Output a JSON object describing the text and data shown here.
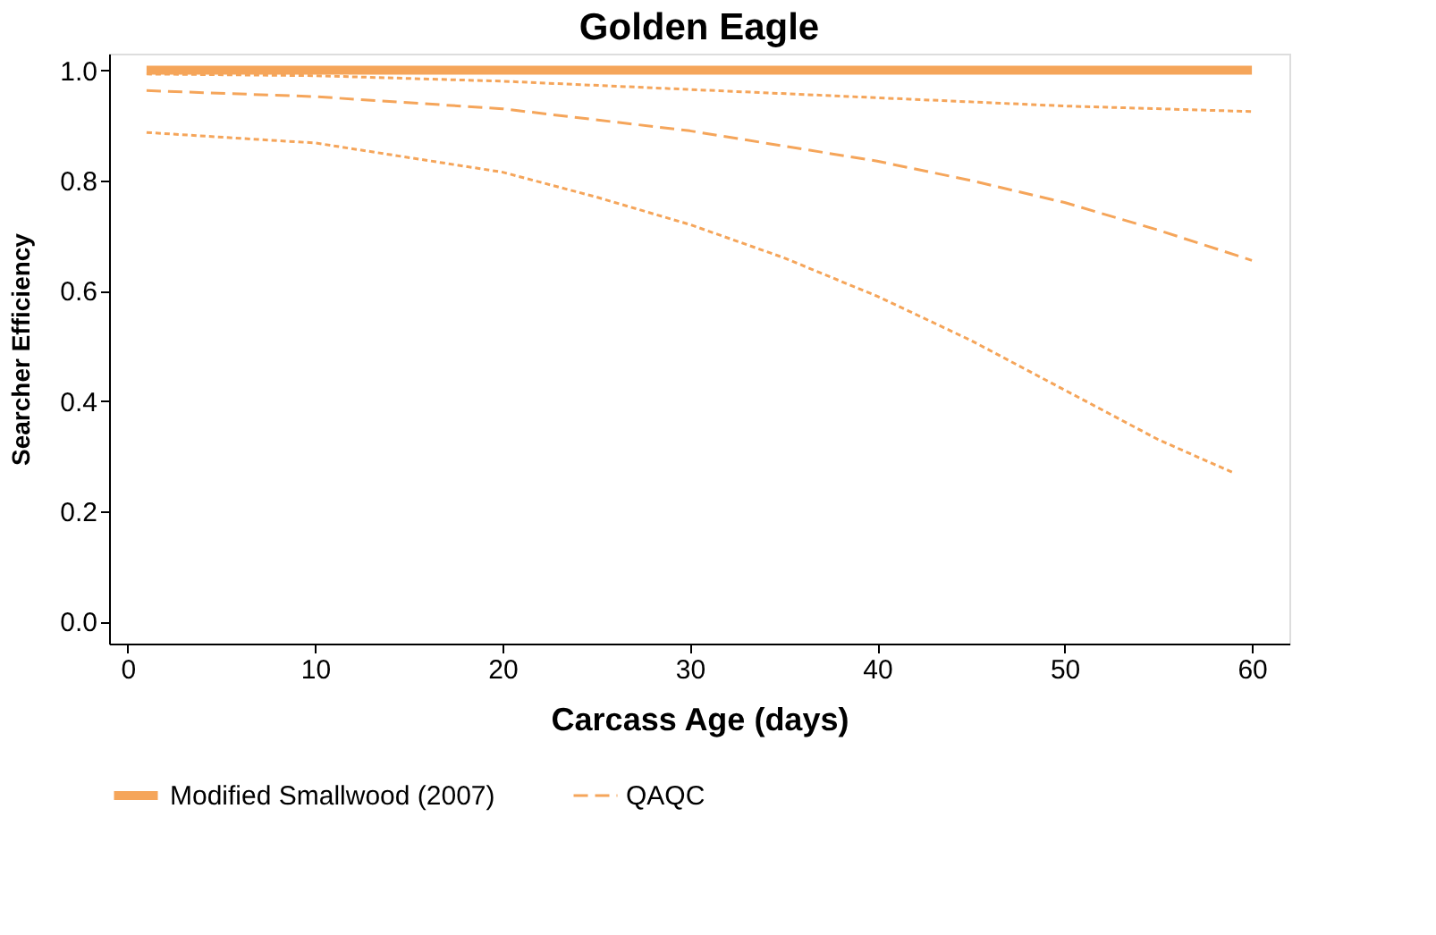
{
  "chart_data": {
    "type": "line",
    "title": "Golden Eagle",
    "xlabel": "Carcass Age (days)",
    "ylabel": "Searcher Efficiency",
    "xlim": [
      -1,
      62
    ],
    "xticks": [
      0,
      10,
      20,
      30,
      40,
      50,
      60
    ],
    "ylim": [
      -0.04,
      1.03
    ],
    "yticks": [
      {
        "value": 0,
        "label": "0.0"
      },
      {
        "value": 0.2,
        "label": "0.2"
      },
      {
        "value": 0.4,
        "label": "0.4"
      },
      {
        "value": 0.6,
        "label": "0.6"
      },
      {
        "value": 0.8,
        "label": "0.8"
      },
      {
        "value": 1,
        "label": "1.0"
      }
    ],
    "legend": "bottom",
    "grid": false,
    "series": [
      {
        "name": "Modified Smallwood (2007)",
        "color": "#f5a55a",
        "line_style": "solid",
        "x": [
          1,
          60
        ],
        "values": [
          1.0,
          1.0
        ]
      },
      {
        "name": "QAQC",
        "color": "#f5a55a",
        "line_style": "dashed",
        "x": [
          1,
          10,
          20,
          30,
          40,
          45,
          50,
          55,
          60
        ],
        "values": [
          0.963,
          0.952,
          0.93,
          0.89,
          0.835,
          0.8,
          0.76,
          0.71,
          0.655
        ]
      },
      {
        "color": "#f5a55a",
        "line_style": "dotted",
        "x": [
          1,
          10,
          20,
          30,
          40,
          50,
          60
        ],
        "values": [
          0.993,
          0.99,
          0.98,
          0.965,
          0.95,
          0.935,
          0.925
        ]
      },
      {
        "color": "#f5a55a",
        "line_style": "dotted",
        "x": [
          1,
          10,
          20,
          25,
          30,
          35,
          40,
          45,
          50,
          55,
          59
        ],
        "values": [
          0.887,
          0.868,
          0.815,
          0.77,
          0.72,
          0.66,
          0.59,
          0.51,
          0.42,
          0.33,
          0.27
        ]
      }
    ]
  }
}
